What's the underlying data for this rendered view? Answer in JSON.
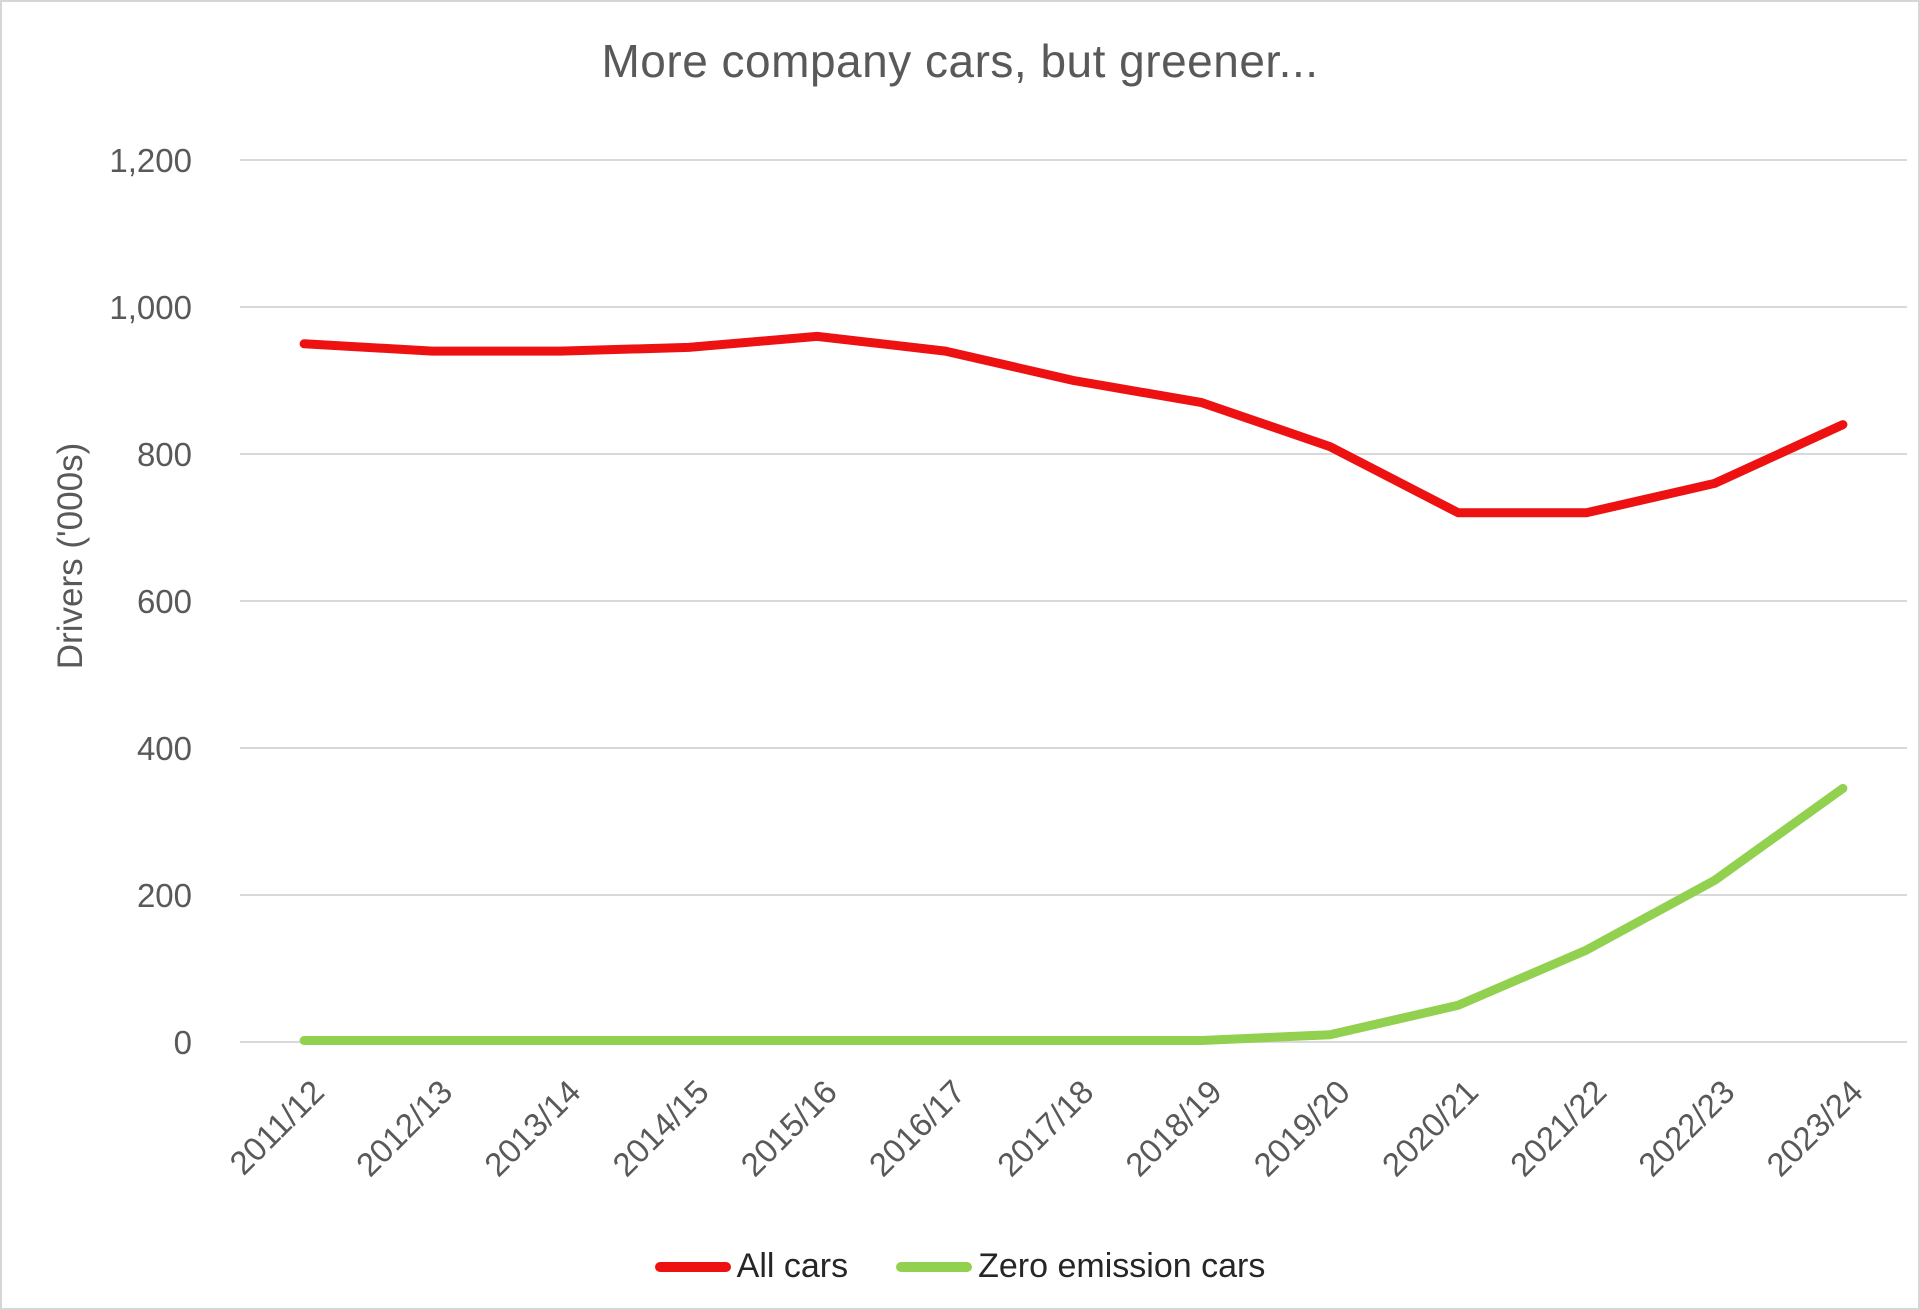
{
  "chart_data": {
    "type": "line",
    "title": "More company cars, but greener...",
    "xlabel": "",
    "ylabel": "Drivers  ('000s)",
    "categories": [
      "2011/12",
      "2012/13",
      "2013/14",
      "2014/15",
      "2015/16",
      "2016/17",
      "2017/18",
      "2018/19",
      "2019/20",
      "2020/21",
      "2021/22",
      "2022/23",
      "2023/24"
    ],
    "series": [
      {
        "name": "All cars",
        "color": "#ee1111",
        "values": [
          950,
          940,
          940,
          945,
          960,
          940,
          900,
          870,
          810,
          720,
          720,
          760,
          840
        ]
      },
      {
        "name": "Zero emission cars",
        "color": "#92d050",
        "values": [
          2,
          2,
          2,
          2,
          2,
          2,
          2,
          2,
          10,
          50,
          125,
          220,
          345
        ]
      }
    ],
    "ylim": [
      0,
      1200
    ],
    "ytick_step": 200,
    "grid": true,
    "gridline_color": "#d9d9d9",
    "legend_position": "bottom"
  }
}
